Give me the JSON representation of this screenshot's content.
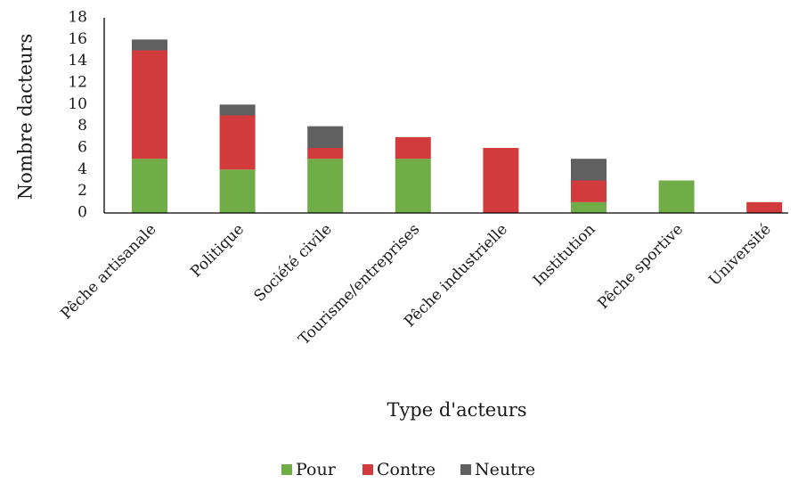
{
  "chart_data": {
    "type": "bar",
    "stacked": true,
    "categories": [
      "Pêche artisanale",
      "Politique",
      "Société civile",
      "Tourisme/entreprises",
      "Pêche industrielle",
      "Institution",
      "Pêche sportive",
      "Université"
    ],
    "series": [
      {
        "name": "Pour",
        "color": "#70ad47",
        "values": [
          5,
          4,
          5,
          5,
          0,
          1,
          3,
          0
        ]
      },
      {
        "name": "Contre",
        "color": "#d13b3b",
        "values": [
          10,
          5,
          1,
          2,
          6,
          2,
          0,
          1
        ]
      },
      {
        "name": "Neutre",
        "color": "#606060",
        "values": [
          1,
          1,
          2,
          0,
          0,
          2,
          0,
          0
        ]
      }
    ],
    "xlabel": "Type d'acteurs",
    "ylabel": "Nombre dacteurs",
    "ylim": [
      0,
      18
    ],
    "yticks": [
      "0",
      "2",
      "4",
      "6",
      "8",
      "10",
      "12",
      "14",
      "16",
      "18"
    ],
    "grid": false,
    "legend": "bottom"
  }
}
